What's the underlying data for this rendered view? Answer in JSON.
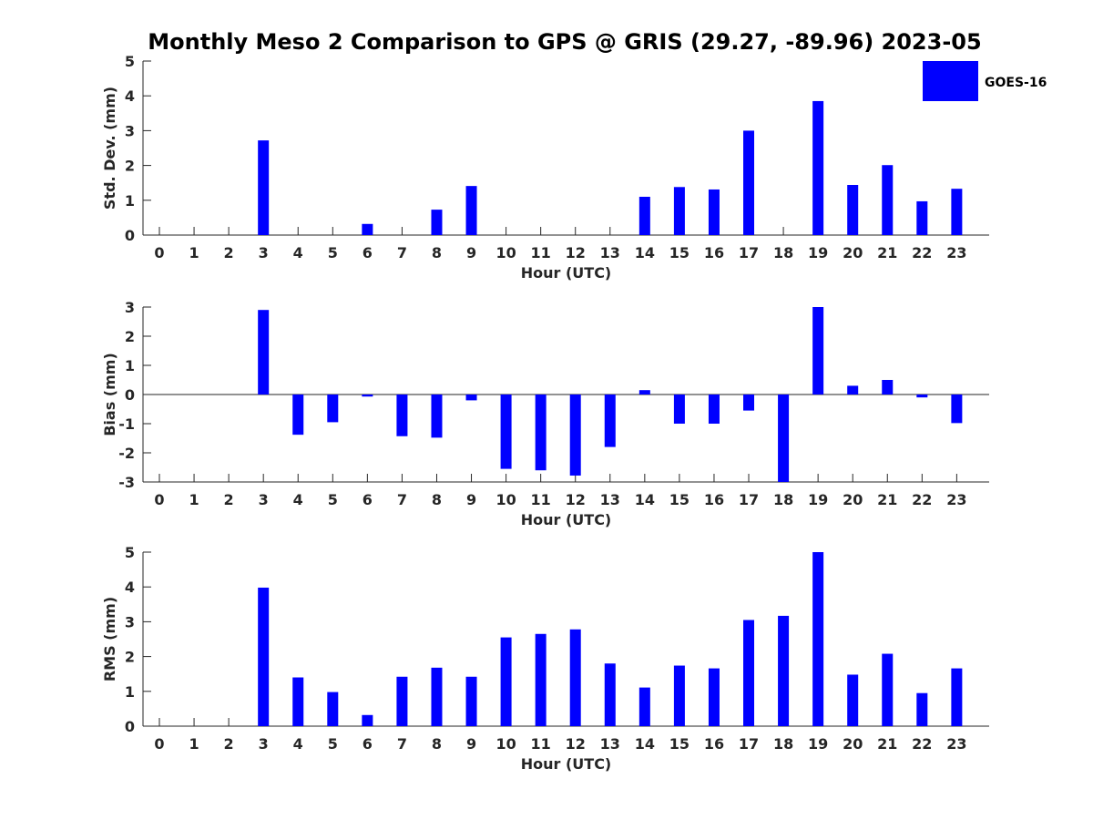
{
  "title": "Monthly Meso 2 Comparison to GPS @ GRIS (29.27, -89.96) 2023-05",
  "legend": {
    "label": "GOES-16",
    "color": "#0000ff",
    "position": "top-right"
  },
  "chart_data": [
    {
      "type": "bar",
      "ylabel": "Std. Dev. (mm)",
      "xlabel": "Hour (UTC)",
      "ylim": [
        0,
        5
      ],
      "yticks": [
        0,
        1,
        2,
        3,
        4,
        5
      ],
      "categories": [
        "0",
        "1",
        "2",
        "3",
        "4",
        "5",
        "6",
        "7",
        "8",
        "9",
        "10",
        "11",
        "12",
        "13",
        "14",
        "15",
        "16",
        "17",
        "18",
        "19",
        "20",
        "21",
        "22",
        "23"
      ],
      "series": [
        {
          "name": "GOES-16",
          "color": "#0000ff",
          "values": [
            null,
            null,
            null,
            2.72,
            null,
            null,
            0.32,
            null,
            0.73,
            1.41,
            null,
            null,
            null,
            null,
            1.1,
            1.38,
            1.31,
            3.0,
            null,
            3.85,
            1.44,
            2.01,
            0.97,
            1.33
          ]
        }
      ]
    },
    {
      "type": "bar",
      "ylabel": "Bias (mm)",
      "xlabel": "Hour (UTC)",
      "ylim": [
        -3,
        3
      ],
      "yticks": [
        -3,
        -2,
        -1,
        0,
        1,
        2,
        3
      ],
      "categories": [
        "0",
        "1",
        "2",
        "3",
        "4",
        "5",
        "6",
        "7",
        "8",
        "9",
        "10",
        "11",
        "12",
        "13",
        "14",
        "15",
        "16",
        "17",
        "18",
        "19",
        "20",
        "21",
        "22",
        "23"
      ],
      "series": [
        {
          "name": "GOES-16",
          "color": "#0000ff",
          "values": [
            null,
            null,
            null,
            2.9,
            -1.38,
            -0.95,
            -0.07,
            -1.43,
            -1.48,
            -0.2,
            -2.55,
            -2.6,
            -2.78,
            -1.8,
            0.15,
            -1.0,
            -1.0,
            -0.55,
            -3.0,
            3.0,
            0.3,
            0.5,
            -0.1,
            -0.98
          ]
        }
      ]
    },
    {
      "type": "bar",
      "ylabel": "RMS (mm)",
      "xlabel": "Hour (UTC)",
      "ylim": [
        0,
        5
      ],
      "yticks": [
        0,
        1,
        2,
        3,
        4,
        5
      ],
      "categories": [
        "0",
        "1",
        "2",
        "3",
        "4",
        "5",
        "6",
        "7",
        "8",
        "9",
        "10",
        "11",
        "12",
        "13",
        "14",
        "15",
        "16",
        "17",
        "18",
        "19",
        "20",
        "21",
        "22",
        "23"
      ],
      "series": [
        {
          "name": "GOES-16",
          "color": "#0000ff",
          "values": [
            null,
            null,
            null,
            3.98,
            1.4,
            0.98,
            0.32,
            1.42,
            1.68,
            1.42,
            2.55,
            2.65,
            2.78,
            1.8,
            1.11,
            1.74,
            1.66,
            3.05,
            3.17,
            5.0,
            1.48,
            2.08,
            0.95,
            1.66
          ]
        }
      ]
    }
  ]
}
